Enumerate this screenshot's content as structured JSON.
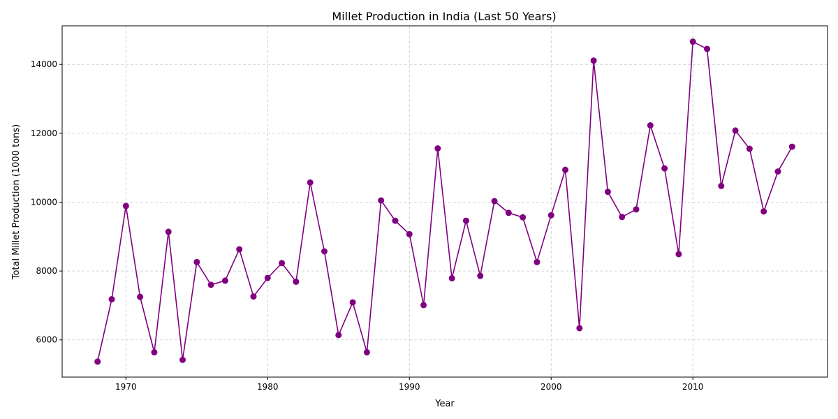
{
  "chart_data": {
    "type": "line",
    "title": "Millet Production in India (Last 50 Years)",
    "xlabel": "Year",
    "ylabel": "Total Millet Production (1000 tons)",
    "xlim": [
      1965.5,
      2019.5
    ],
    "ylim": [
      4920,
      15120
    ],
    "xticks": [
      1970,
      1980,
      1990,
      2000,
      2010
    ],
    "yticks": [
      6000,
      8000,
      10000,
      12000,
      14000
    ],
    "grid": true,
    "color": "#800080",
    "marker": "circle",
    "series": [
      {
        "x": [
          1968,
          1969,
          1970,
          1971,
          1972,
          1973,
          1974,
          1975,
          1976,
          1977,
          1978,
          1979,
          1980,
          1981,
          1982,
          1983,
          1984,
          1985,
          1986,
          1987,
          1988,
          1989,
          1990,
          1991,
          1992,
          1993,
          1994,
          1995,
          1996,
          1997,
          1998,
          1999,
          2000,
          2001,
          2002,
          2003,
          2004,
          2005,
          2006,
          2007,
          2008,
          2009,
          2010,
          2011,
          2012,
          2013,
          2014,
          2015,
          2016,
          2017
        ],
        "y": [
          5370,
          7180,
          9890,
          7250,
          5640,
          9140,
          5420,
          8260,
          7600,
          7720,
          8630,
          7260,
          7800,
          8230,
          7690,
          10570,
          8570,
          6140,
          7090,
          5640,
          10050,
          9460,
          9070,
          7010,
          11560,
          7790,
          9460,
          7860,
          10030,
          9690,
          9560,
          8260,
          9620,
          10940,
          6340,
          14110,
          10300,
          9570,
          9790,
          12230,
          10980,
          8490,
          14660,
          14450,
          10470,
          12080,
          11550,
          9730,
          10890,
          11610
        ]
      }
    ]
  }
}
